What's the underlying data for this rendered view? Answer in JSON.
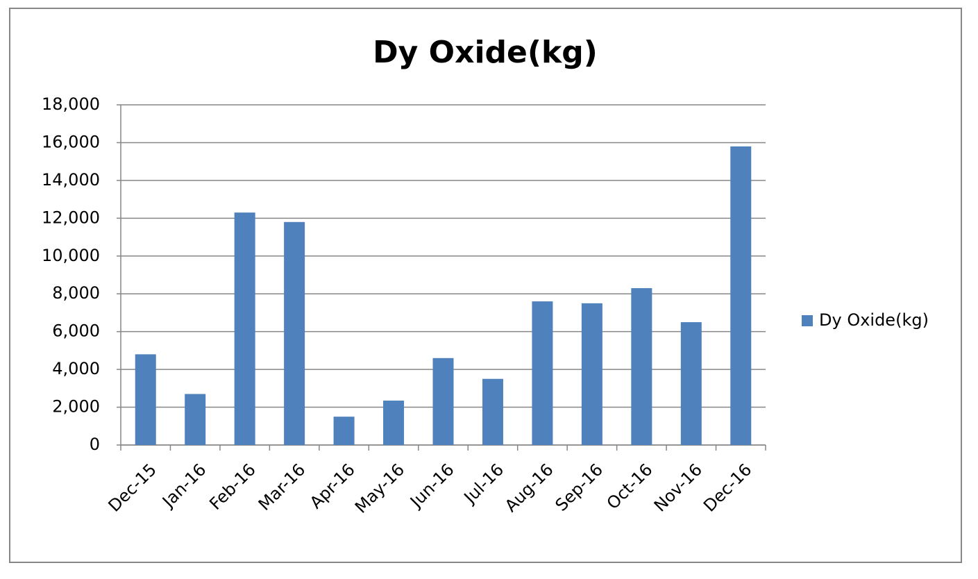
{
  "chart_data": {
    "type": "bar",
    "title": "Dy Oxide(kg)",
    "categories": [
      "Dec-15",
      "Jan-16",
      "Feb-16",
      "Mar-16",
      "Apr-16",
      "May-16",
      "Jun-16",
      "Jul-16",
      "Aug-16",
      "Sep-16",
      "Oct-16",
      "Nov-16",
      "Dec-16"
    ],
    "series": [
      {
        "name": "Dy Oxide(kg)",
        "color": "#4f81bd",
        "values": [
          4800,
          2700,
          12300,
          11800,
          1500,
          2350,
          4600,
          3500,
          7600,
          7500,
          8300,
          6500,
          15800
        ]
      }
    ],
    "ylim": [
      0,
      18000
    ],
    "yticks": [
      0,
      {
        "value": 2000,
        "label": "2,000"
      },
      {
        "value": 4000,
        "label": "4,000"
      },
      {
        "value": 6000,
        "label": "6,000"
      },
      {
        "value": 8000,
        "label": "8,000"
      },
      {
        "value": 10000,
        "label": "10,000"
      },
      {
        "value": 12000,
        "label": "12,000"
      },
      {
        "value": 14000,
        "label": "14,000"
      },
      {
        "value": 16000,
        "label": "16,000"
      },
      {
        "value": 18000,
        "label": "18,000"
      }
    ],
    "grid": true,
    "legend": "right"
  }
}
